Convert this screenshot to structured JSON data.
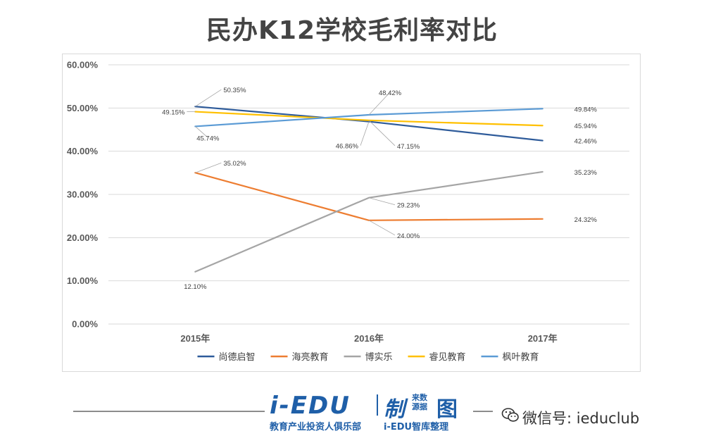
{
  "title": "民办K12学校毛利率对比",
  "chart_data": {
    "type": "line",
    "title": "民办K12学校毛利率对比",
    "categories": [
      "2015年",
      "2016年",
      "2017年"
    ],
    "yticks": [
      "0.00%",
      "10.00%",
      "20.00%",
      "30.00%",
      "40.00%",
      "50.00%",
      "60.00%"
    ],
    "ylim": [
      0,
      60
    ],
    "grid": true,
    "legend_position": "bottom",
    "series": [
      {
        "name": "尚德启智",
        "color": "#2e5b9a",
        "values": [
          50.35,
          46.86,
          42.46
        ],
        "labels": [
          "50.35%",
          "46.86%",
          "42.46%"
        ]
      },
      {
        "name": "海亮教育",
        "color": "#ed7d31",
        "values": [
          35.02,
          24.0,
          24.32
        ],
        "labels": [
          "35.02%",
          "24.00%",
          "24.32%"
        ]
      },
      {
        "name": "博实乐",
        "color": "#a5a5a5",
        "values": [
          12.1,
          29.23,
          35.23
        ],
        "labels": [
          "12.10%",
          "29.23%",
          "35.23%"
        ]
      },
      {
        "name": "睿见教育",
        "color": "#ffc000",
        "values": [
          49.15,
          47.15,
          45.94
        ],
        "labels": [
          "49.15%",
          "47.15%",
          "45.94%"
        ]
      },
      {
        "name": "枫叶教育",
        "color": "#5b9bd5",
        "values": [
          45.74,
          48.42,
          49.84
        ],
        "labels": [
          "45.74%",
          "48.42%",
          "49.84%"
        ]
      }
    ]
  },
  "footer": {
    "brand": "i-EDU",
    "brand_zhi": "制",
    "brand_small_1": "来数",
    "brand_small_2": "源据",
    "brand_tu": "图",
    "subtitle_left": "教育产业投资人俱乐部",
    "subtitle_right": "i-EDU智库整理",
    "wechat": "微信号: ieduclub"
  }
}
